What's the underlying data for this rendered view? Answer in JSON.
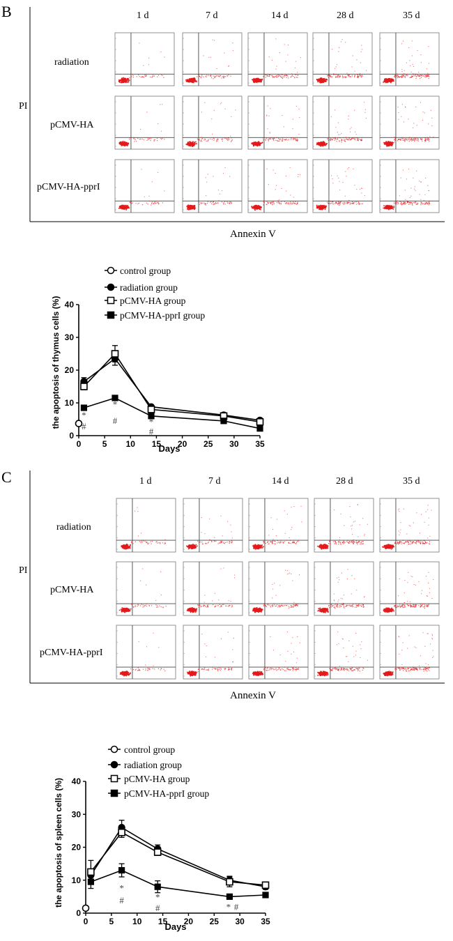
{
  "panel_B": {
    "letter": "B",
    "x_axis_label": "Annexin V",
    "y_axis_label": "PI",
    "day_labels": [
      "1 d",
      "7 d",
      "14 d",
      "28 d",
      "35 d"
    ],
    "row_labels": [
      "radiation",
      "pCMV-HA",
      "pCMV-HA-pprI"
    ]
  },
  "panel_C": {
    "letter": "C",
    "x_axis_label": "Annexin V",
    "y_axis_label": "PI",
    "day_labels": [
      "1 d",
      "7 d",
      "14 d",
      "28 d",
      "35 d"
    ],
    "row_labels": [
      "radiation",
      "pCMV-HA",
      "pCMV-HA-pprI"
    ]
  },
  "chart_data": [
    {
      "type": "line",
      "title": "",
      "xlabel": "Days",
      "ylabel": "the apoptosis of thymus cells (%)",
      "xlim": [
        0,
        35
      ],
      "ylim": [
        0,
        40
      ],
      "xticks": [
        0,
        5,
        10,
        15,
        20,
        25,
        30,
        35
      ],
      "yticks": [
        0,
        10,
        20,
        30,
        40
      ],
      "legend": [
        "control group",
        "radiation group",
        "pCMV-HA group",
        "pCMV-HA-pprI group"
      ],
      "legend_position": "top",
      "series": [
        {
          "name": "control group",
          "marker": "circle-open",
          "x": [
            0
          ],
          "y": [
            3.7
          ],
          "err": [
            0
          ]
        },
        {
          "name": "radiation group",
          "marker": "circle-filled",
          "x": [
            1,
            7,
            14,
            28,
            35
          ],
          "y": [
            16.5,
            23.5,
            8.8,
            6.3,
            4.7
          ],
          "err": [
            1.2,
            2.0,
            0.5,
            0.6,
            0.4
          ]
        },
        {
          "name": "pCMV-HA group",
          "marker": "square-open",
          "x": [
            1,
            7,
            14,
            28,
            35
          ],
          "y": [
            15.0,
            25.0,
            8.0,
            6.0,
            4.2
          ],
          "err": [
            1.0,
            2.5,
            0.5,
            0.5,
            0.4
          ]
        },
        {
          "name": "pCMV-HA-pprI group",
          "marker": "square-filled",
          "x": [
            1,
            7,
            14,
            28,
            35
          ],
          "y": [
            8.5,
            11.5,
            6.0,
            4.5,
            2.2
          ],
          "err": [
            0.4,
            0.8,
            0.4,
            0.4,
            0.3
          ]
        }
      ],
      "annotations": [
        {
          "x": 1,
          "y": 6.2,
          "text": "*"
        },
        {
          "x": 1,
          "y": 2.8,
          "text": "#"
        },
        {
          "x": 7,
          "y": 9.5,
          "text": "*"
        },
        {
          "x": 7,
          "y": 4.5,
          "text": "#"
        },
        {
          "x": 14,
          "y": 4.2,
          "text": "*"
        },
        {
          "x": 14,
          "y": 1.2,
          "text": "#"
        }
      ]
    },
    {
      "type": "line",
      "title": "",
      "xlabel": "Days",
      "ylabel": "the apoptosis of spleen cells (%)",
      "xlim": [
        0,
        35
      ],
      "ylim": [
        0,
        40
      ],
      "xticks": [
        0,
        5,
        10,
        15,
        20,
        25,
        30,
        35
      ],
      "yticks": [
        0,
        10,
        20,
        30,
        40
      ],
      "legend": [
        "control group",
        "radiation group",
        "pCMV-HA group",
        "pCMV-HA-pprI group"
      ],
      "legend_position": "top",
      "series": [
        {
          "name": "control group",
          "marker": "circle-open",
          "x": [
            0
          ],
          "y": [
            1.5
          ],
          "err": [
            0
          ]
        },
        {
          "name": "radiation group",
          "marker": "circle-filled",
          "x": [
            1,
            7,
            14,
            28,
            35
          ],
          "y": [
            11.5,
            26.0,
            19.5,
            10.0,
            8.0
          ],
          "err": [
            1.5,
            2.2,
            1.2,
            1.2,
            0.8
          ]
        },
        {
          "name": "pCMV-HA group",
          "marker": "square-open",
          "x": [
            1,
            7,
            14,
            28,
            35
          ],
          "y": [
            12.5,
            24.5,
            18.5,
            9.5,
            8.5
          ],
          "err": [
            3.5,
            1.5,
            1.0,
            1.5,
            0.8
          ]
        },
        {
          "name": "pCMV-HA-pprI group",
          "marker": "square-filled",
          "x": [
            1,
            7,
            14,
            28,
            35
          ],
          "y": [
            9.5,
            13.0,
            8.0,
            5.0,
            5.5
          ],
          "err": [
            2.0,
            2.0,
            1.8,
            0.6,
            0.6
          ]
        }
      ],
      "annotations": [
        {
          "x": 7,
          "y": 7.5,
          "text": "*"
        },
        {
          "x": 7,
          "y": 3.8,
          "text": "#"
        },
        {
          "x": 14,
          "y": 4.8,
          "text": "*"
        },
        {
          "x": 14,
          "y": 1.5,
          "text": "#"
        },
        {
          "x": 27.8,
          "y": 1.8,
          "text": "*"
        },
        {
          "x": 29.3,
          "y": 1.8,
          "text": "#"
        }
      ]
    }
  ]
}
